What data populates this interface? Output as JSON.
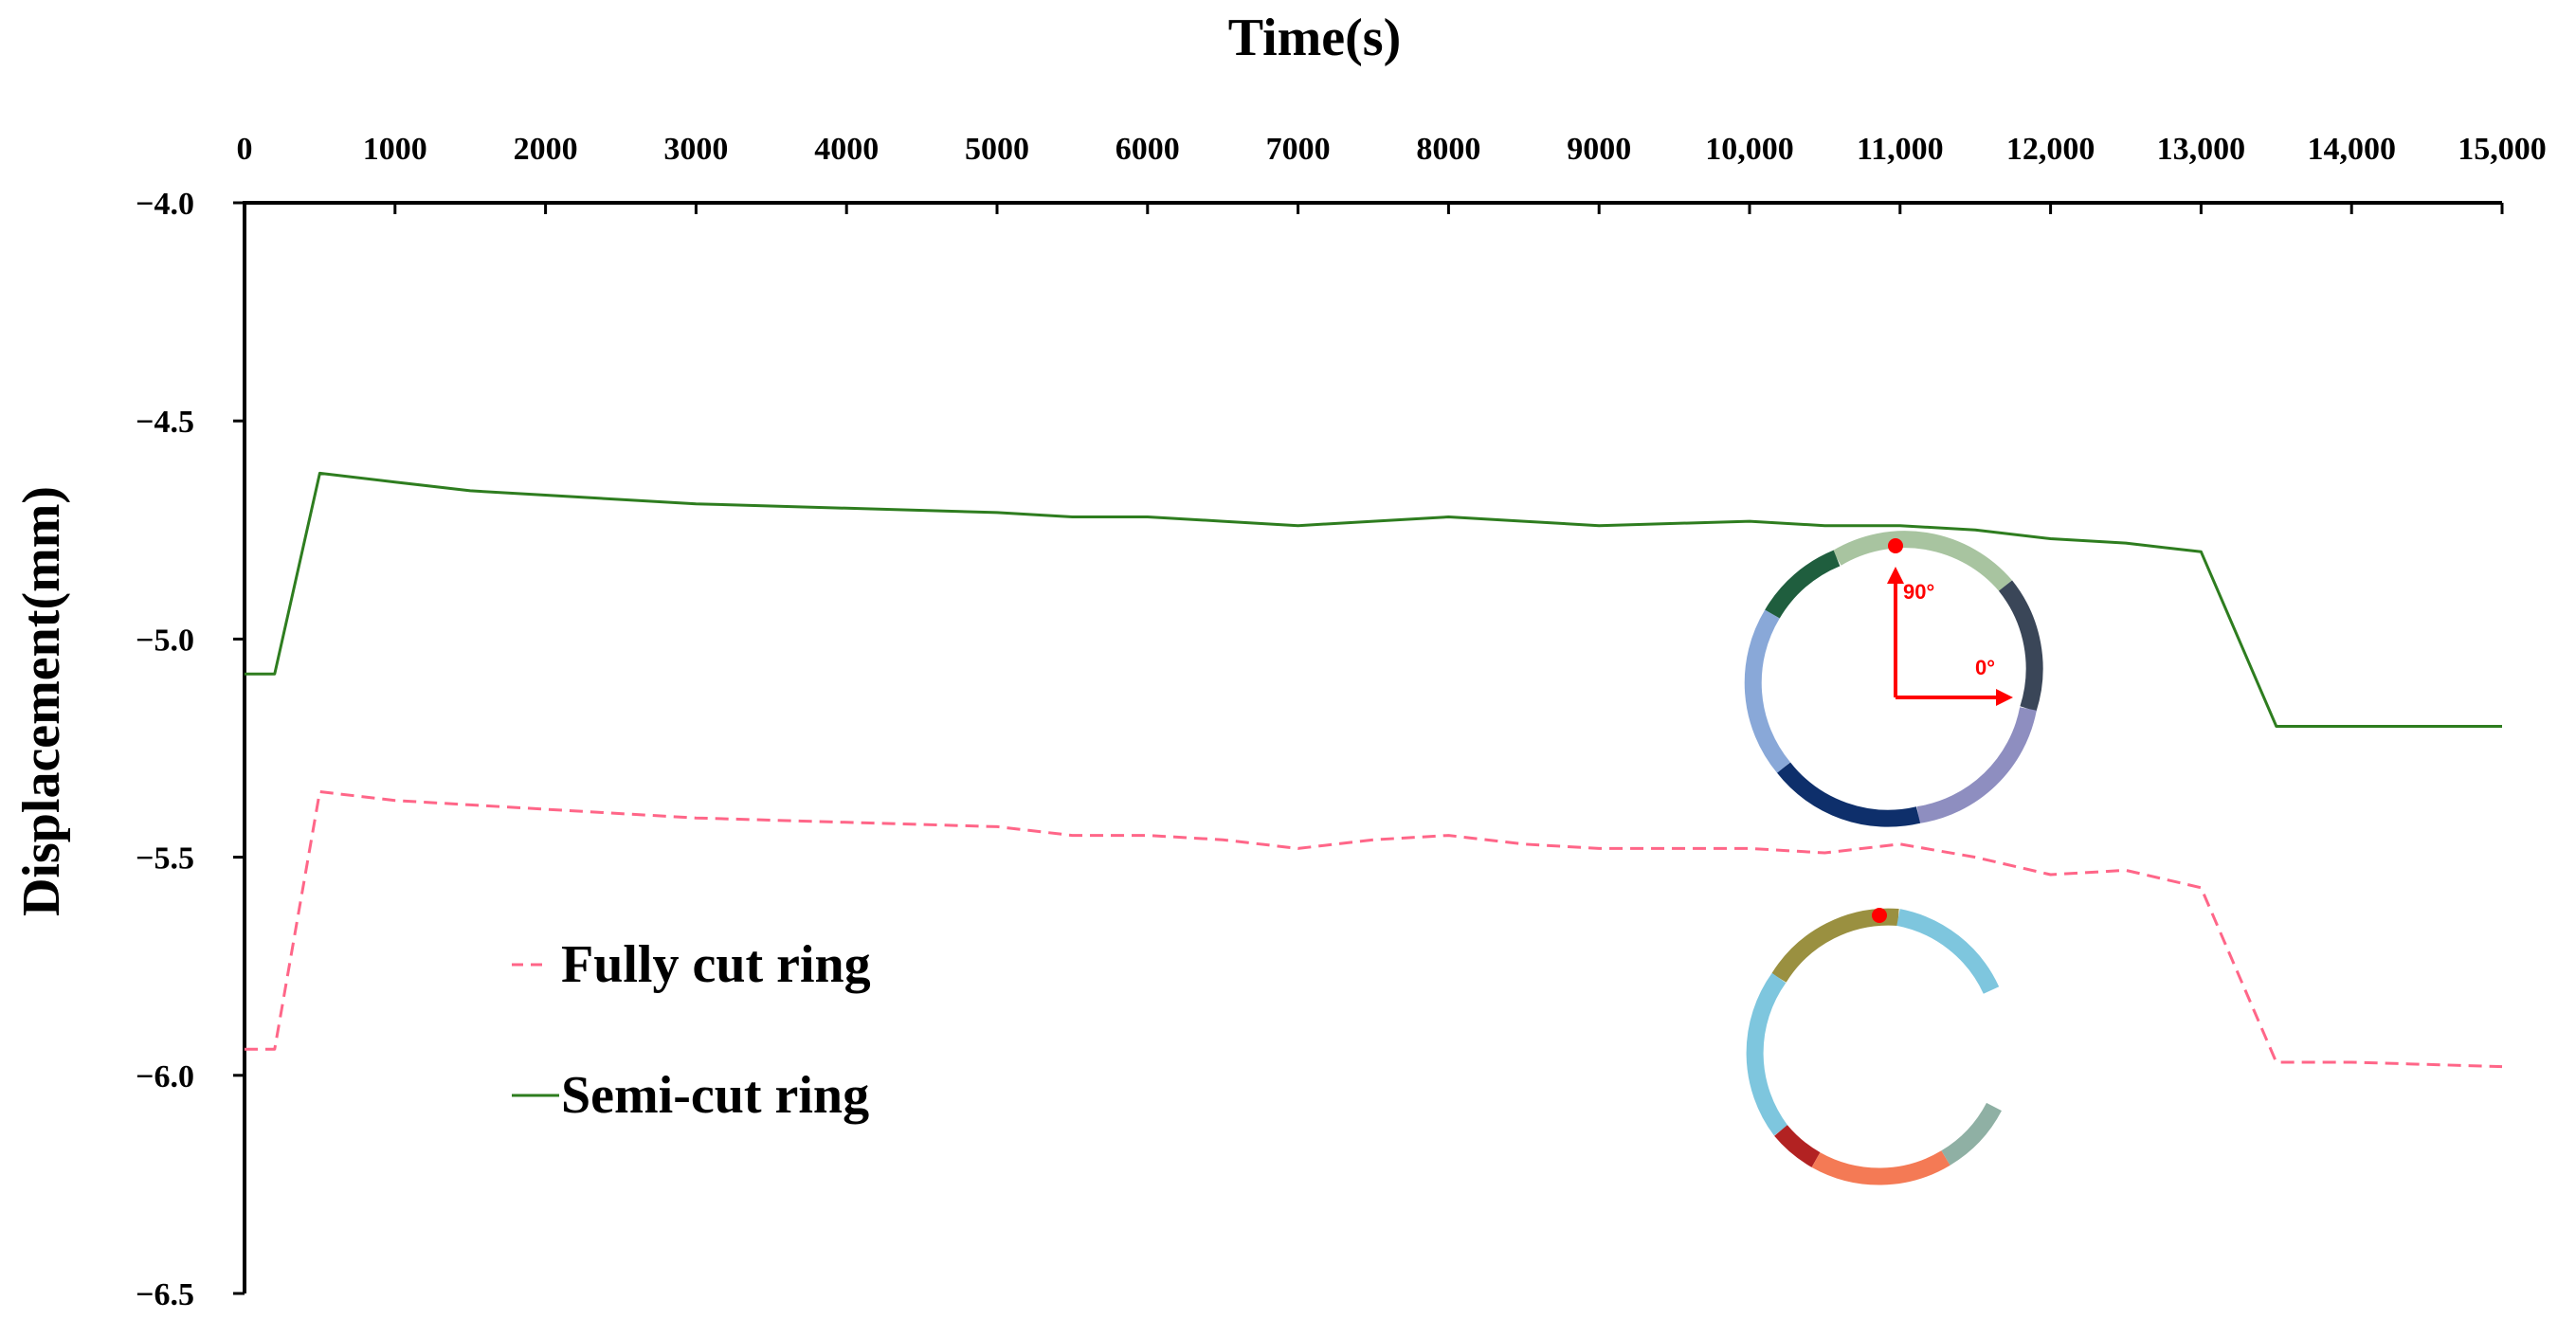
{
  "chart_data": {
    "type": "line",
    "xlabel": "Time(s)",
    "ylabel": "Displacement(mm)",
    "xlim": [
      0,
      15000
    ],
    "ylim": [
      -6.5,
      -4.0
    ],
    "x_axis_position": "top",
    "x_ticks": [
      0,
      1000,
      2000,
      3000,
      4000,
      5000,
      6000,
      7000,
      8000,
      9000,
      10000,
      11000,
      12000,
      13000,
      14000,
      15000
    ],
    "x_tick_labels": [
      "0",
      "1000",
      "2000",
      "3000",
      "4000",
      "5000",
      "6000",
      "7000",
      "8000",
      "9000",
      "10,000",
      "11,000",
      "12,000",
      "13,000",
      "14,000",
      "15,000"
    ],
    "y_ticks": [
      -4.0,
      -4.5,
      -5.0,
      -5.5,
      -6.0,
      -6.5
    ],
    "y_tick_labels": [
      "−4.0",
      "−4.5",
      "−5.0",
      "−5.5",
      "−6.0",
      "−6.5"
    ],
    "grid": false,
    "legend_position": "bottom-left",
    "series": [
      {
        "name": "Fully cut ring",
        "color": "#ff6688",
        "style": "dashed",
        "x": [
          0,
          200,
          500,
          1000,
          1500,
          2000,
          3000,
          4000,
          5000,
          5500,
          6000,
          6500,
          7000,
          7500,
          8000,
          8500,
          9000,
          10000,
          10500,
          11000,
          11500,
          12000,
          12500,
          13000,
          13500,
          14000,
          15000
        ],
        "y": [
          -5.94,
          -5.94,
          -5.35,
          -5.37,
          -5.38,
          -5.39,
          -5.41,
          -5.42,
          -5.43,
          -5.45,
          -5.45,
          -5.46,
          -5.48,
          -5.46,
          -5.45,
          -5.47,
          -5.48,
          -5.48,
          -5.49,
          -5.47,
          -5.5,
          -5.54,
          -5.53,
          -5.57,
          -5.97,
          -5.97,
          -5.98
        ]
      },
      {
        "name": "Semi-cut ring",
        "color": "#2e7d1f",
        "style": "solid",
        "x": [
          0,
          200,
          500,
          1000,
          1500,
          2000,
          3000,
          4000,
          5000,
          5500,
          6000,
          6500,
          7000,
          7500,
          8000,
          8500,
          9000,
          10000,
          10500,
          11000,
          11500,
          12000,
          12500,
          13000,
          13500,
          14000,
          15000
        ],
        "y": [
          -5.08,
          -5.08,
          -4.62,
          -4.64,
          -4.66,
          -4.67,
          -4.69,
          -4.7,
          -4.71,
          -4.72,
          -4.72,
          -4.73,
          -4.74,
          -4.73,
          -4.72,
          -4.73,
          -4.74,
          -4.73,
          -4.74,
          -4.74,
          -4.75,
          -4.77,
          -4.78,
          -4.8,
          -5.2,
          -5.2,
          -5.2
        ]
      }
    ],
    "annotations": {
      "ring_angle_labels": [
        "90°",
        "0°"
      ]
    }
  }
}
